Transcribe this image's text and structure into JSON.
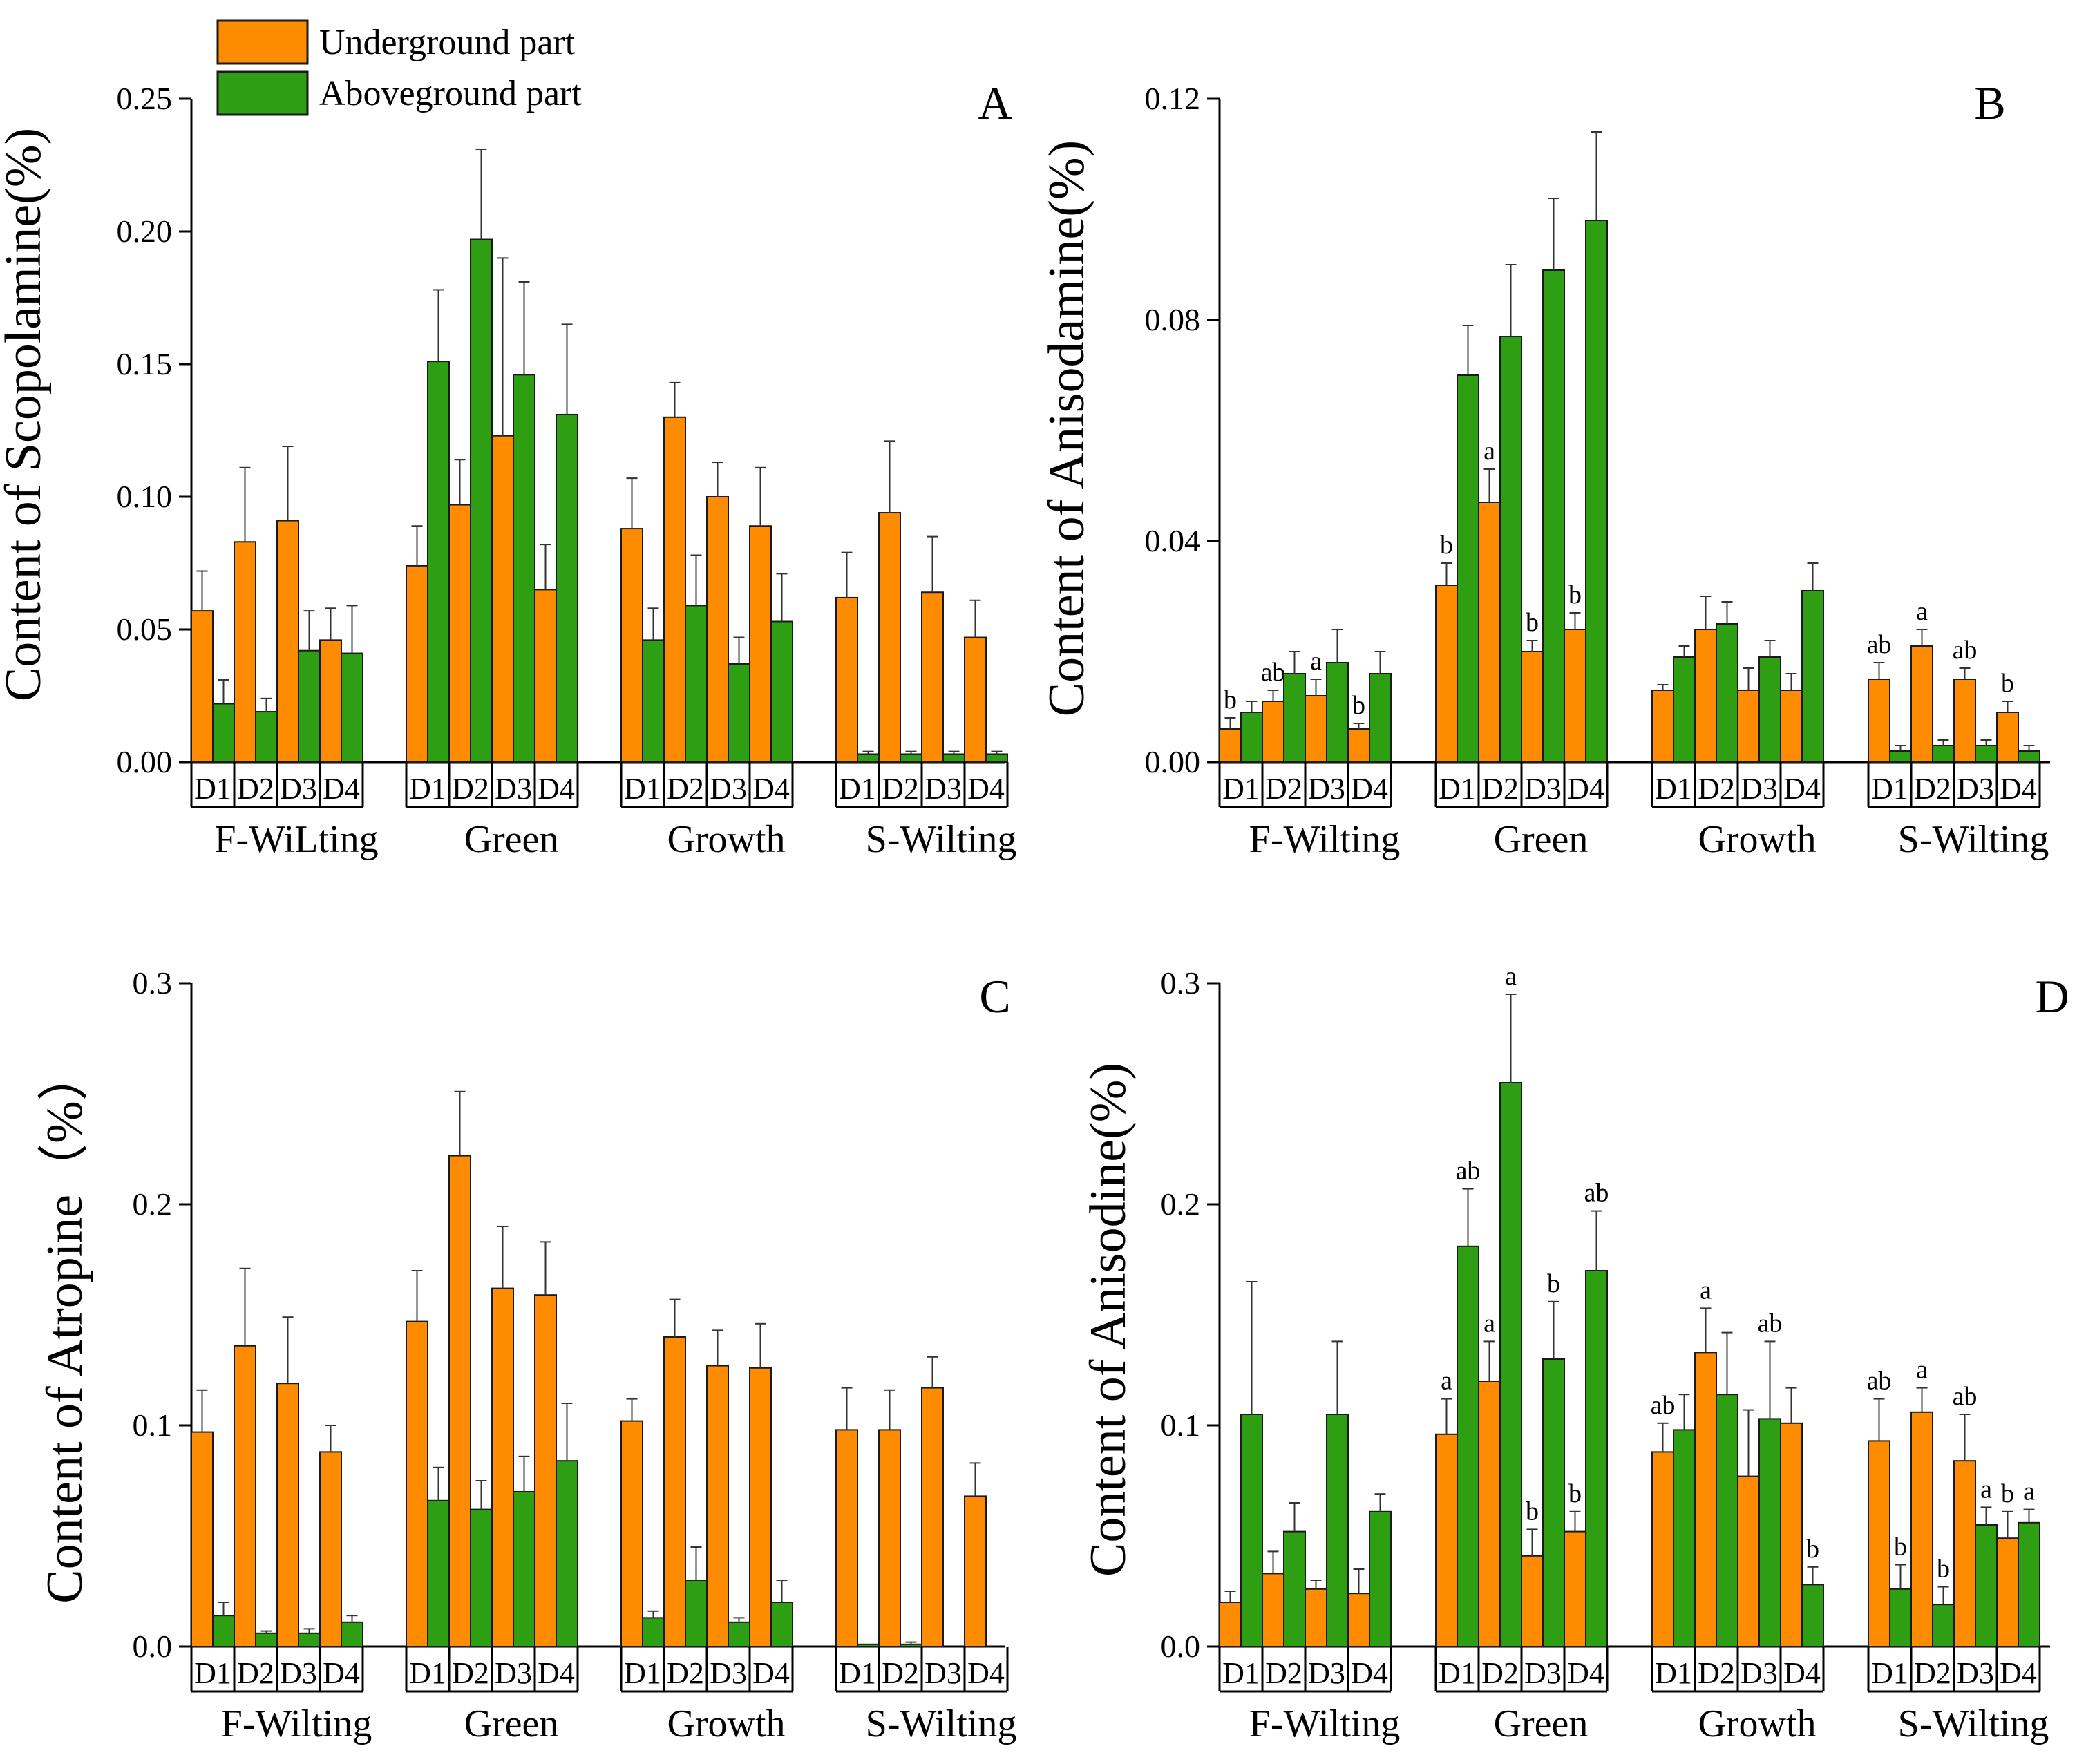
{
  "legend": {
    "items": [
      {
        "label": "Underground part",
        "color": "#FF8C00"
      },
      {
        "label": "Aboveground part",
        "color": "#2E9E12"
      }
    ]
  },
  "colors": {
    "underground": "#FF8C00",
    "aboveground": "#2E9E12",
    "stroke": "#1a1a1a"
  },
  "chart_data": [
    {
      "panel": "A",
      "type": "bar",
      "ylabel": "Content of Scopolamine(%)",
      "ylim": [
        0,
        0.25
      ],
      "yticks": [
        "0.00",
        "0.05",
        "0.10",
        "0.15",
        "0.20",
        "0.25"
      ],
      "groups": [
        "F-WiLting",
        "Green",
        "Growth",
        "S-Wilting"
      ],
      "subgroups": [
        "D1",
        "D2",
        "D3",
        "D4"
      ],
      "series": [
        {
          "name": "Underground part",
          "values": [
            [
              0.057,
              0.083,
              0.091,
              0.046
            ],
            [
              0.074,
              0.097,
              0.123,
              0.065
            ],
            [
              0.088,
              0.13,
              0.1,
              0.089
            ],
            [
              0.062,
              0.094,
              0.064,
              0.047
            ]
          ],
          "errors": [
            [
              0.015,
              0.028,
              0.028,
              0.012
            ],
            [
              0.015,
              0.017,
              0.067,
              0.017
            ],
            [
              0.019,
              0.013,
              0.013,
              0.022
            ],
            [
              0.017,
              0.027,
              0.021,
              0.014
            ]
          ],
          "labels": [
            [
              "",
              "",
              "",
              ""
            ],
            [
              "",
              "",
              "",
              ""
            ],
            [
              "",
              "",
              "",
              ""
            ],
            [
              "",
              "",
              "",
              ""
            ]
          ]
        },
        {
          "name": "Aboveground part",
          "values": [
            [
              0.022,
              0.019,
              0.042,
              0.041
            ],
            [
              0.151,
              0.197,
              0.146,
              0.131
            ],
            [
              0.046,
              0.059,
              0.037,
              0.053
            ],
            [
              0.003,
              0.003,
              0.003,
              0.003
            ]
          ],
          "errors": [
            [
              0.009,
              0.005,
              0.015,
              0.018
            ],
            [
              0.027,
              0.034,
              0.035,
              0.034
            ],
            [
              0.012,
              0.019,
              0.01,
              0.018
            ],
            [
              0.001,
              0.001,
              0.001,
              0.001
            ]
          ],
          "labels": [
            [
              "",
              "",
              "",
              ""
            ],
            [
              "",
              "",
              "",
              ""
            ],
            [
              "",
              "",
              "",
              ""
            ],
            [
              "",
              "",
              "",
              ""
            ]
          ]
        }
      ]
    },
    {
      "panel": "B",
      "type": "bar",
      "ylabel": "Content of Anisodamine(%)",
      "ylim": [
        0,
        0.12
      ],
      "yticks": [
        "0.00",
        "0.04",
        "0.08",
        "0.12"
      ],
      "groups": [
        "F-Wilting",
        "Green",
        "Growth",
        "S-Wilting"
      ],
      "subgroups": [
        "D1",
        "D2",
        "D3",
        "D4"
      ],
      "series": [
        {
          "name": "Underground part",
          "values": [
            [
              0.006,
              0.011,
              0.012,
              0.006
            ],
            [
              0.032,
              0.047,
              0.02,
              0.024
            ],
            [
              0.013,
              0.024,
              0.013,
              0.013
            ],
            [
              0.015,
              0.021,
              0.015,
              0.009
            ]
          ],
          "errors": [
            [
              0.002,
              0.002,
              0.003,
              0.001
            ],
            [
              0.004,
              0.006,
              0.002,
              0.003
            ],
            [
              0.001,
              0.006,
              0.004,
              0.003
            ],
            [
              0.003,
              0.003,
              0.002,
              0.002
            ]
          ],
          "labels": [
            [
              "b",
              "ab",
              "a",
              "b"
            ],
            [
              "b",
              "a",
              "b",
              "b"
            ],
            [
              "",
              "",
              "",
              ""
            ],
            [
              "ab",
              "a",
              "ab",
              "b"
            ]
          ]
        },
        {
          "name": "Aboveground part",
          "values": [
            [
              0.009,
              0.016,
              0.018,
              0.016
            ],
            [
              0.07,
              0.077,
              0.089,
              0.098
            ],
            [
              0.019,
              0.025,
              0.019,
              0.031
            ],
            [
              0.002,
              0.003,
              0.003,
              0.002
            ]
          ],
          "errors": [
            [
              0.002,
              0.004,
              0.006,
              0.004
            ],
            [
              0.009,
              0.013,
              0.013,
              0.016
            ],
            [
              0.002,
              0.004,
              0.003,
              0.005
            ],
            [
              0.001,
              0.001,
              0.001,
              0.001
            ]
          ],
          "labels": [
            [
              "",
              "",
              "",
              ""
            ],
            [
              "",
              "",
              "",
              ""
            ],
            [
              "",
              "",
              "",
              ""
            ],
            [
              "",
              "",
              "",
              ""
            ]
          ]
        }
      ]
    },
    {
      "panel": "C",
      "type": "bar",
      "ylabel": "Content of Atropine（%）",
      "ylim": [
        0,
        0.3
      ],
      "yticks": [
        "0.0",
        "0.1",
        "0.2",
        "0.3"
      ],
      "groups": [
        "F-Wilting",
        "Green",
        "Growth",
        "S-Wilting"
      ],
      "subgroups": [
        "D1",
        "D2",
        "D3",
        "D4"
      ],
      "series": [
        {
          "name": "Underground part",
          "values": [
            [
              0.097,
              0.136,
              0.119,
              0.088
            ],
            [
              0.147,
              0.222,
              0.162,
              0.159
            ],
            [
              0.102,
              0.14,
              0.127,
              0.126
            ],
            [
              0.098,
              0.098,
              0.117,
              0.068
            ]
          ],
          "errors": [
            [
              0.019,
              0.035,
              0.03,
              0.012
            ],
            [
              0.023,
              0.029,
              0.028,
              0.024
            ],
            [
              0.01,
              0.017,
              0.016,
              0.02
            ],
            [
              0.019,
              0.018,
              0.014,
              0.015
            ]
          ],
          "labels": [
            [
              "",
              "",
              "",
              ""
            ],
            [
              "",
              "",
              "",
              ""
            ],
            [
              "",
              "",
              "",
              ""
            ],
            [
              "",
              "",
              "",
              ""
            ]
          ]
        },
        {
          "name": "Aboveground part",
          "values": [
            [
              0.014,
              0.006,
              0.006,
              0.011
            ],
            [
              0.066,
              0.062,
              0.07,
              0.084
            ],
            [
              0.013,
              0.03,
              0.011,
              0.02
            ],
            [
              0.001,
              0.001,
              0.0,
              0.0
            ]
          ],
          "errors": [
            [
              0.006,
              0.001,
              0.002,
              0.003
            ],
            [
              0.015,
              0.013,
              0.016,
              0.026
            ],
            [
              0.003,
              0.015,
              0.002,
              0.01
            ],
            [
              0.0,
              0.001,
              0.0,
              0.0
            ]
          ],
          "labels": [
            [
              "",
              "",
              "",
              ""
            ],
            [
              "",
              "",
              "",
              ""
            ],
            [
              "",
              "",
              "",
              ""
            ],
            [
              "",
              "",
              "",
              ""
            ]
          ]
        }
      ]
    },
    {
      "panel": "D",
      "type": "bar",
      "ylabel": "Content of Anisodine(%)",
      "ylim": [
        0,
        0.3
      ],
      "yticks": [
        "0.0",
        "0.1",
        "0.2",
        "0.3"
      ],
      "groups": [
        "F-Wilting",
        "Green",
        "Growth",
        "S-Wilting"
      ],
      "subgroups": [
        "D1",
        "D2",
        "D3",
        "D4"
      ],
      "series": [
        {
          "name": "Underground part",
          "values": [
            [
              0.02,
              0.033,
              0.026,
              0.024
            ],
            [
              0.096,
              0.12,
              0.041,
              0.052
            ],
            [
              0.088,
              0.133,
              0.077,
              0.101
            ],
            [
              0.093,
              0.106,
              0.084,
              0.049
            ]
          ],
          "errors": [
            [
              0.005,
              0.01,
              0.004,
              0.011
            ],
            [
              0.016,
              0.018,
              0.012,
              0.009
            ],
            [
              0.013,
              0.02,
              0.03,
              0.016
            ],
            [
              0.019,
              0.011,
              0.021,
              0.012
            ]
          ],
          "labels": [
            [
              "",
              "",
              "",
              ""
            ],
            [
              "a",
              "a",
              "b",
              "b"
            ],
            [
              "ab",
              "a",
              "",
              ""
            ],
            [
              "ab",
              "a",
              "ab",
              "b"
            ]
          ]
        },
        {
          "name": "Aboveground part",
          "values": [
            [
              0.105,
              0.052,
              0.105,
              0.061
            ],
            [
              0.181,
              0.255,
              0.13,
              0.17
            ],
            [
              0.098,
              0.114,
              0.103,
              0.028
            ],
            [
              0.026,
              0.019,
              0.055,
              0.056
            ]
          ],
          "errors": [
            [
              0.06,
              0.013,
              0.033,
              0.008
            ],
            [
              0.026,
              0.04,
              0.026,
              0.027
            ],
            [
              0.016,
              0.028,
              0.035,
              0.008
            ],
            [
              0.011,
              0.008,
              0.008,
              0.006
            ]
          ],
          "labels": [
            [
              "",
              "",
              "",
              ""
            ],
            [
              "ab",
              "a",
              "b",
              "ab"
            ],
            [
              "",
              "",
              "ab",
              "b"
            ],
            [
              "b",
              "b",
              "a",
              "a"
            ]
          ]
        }
      ]
    }
  ]
}
